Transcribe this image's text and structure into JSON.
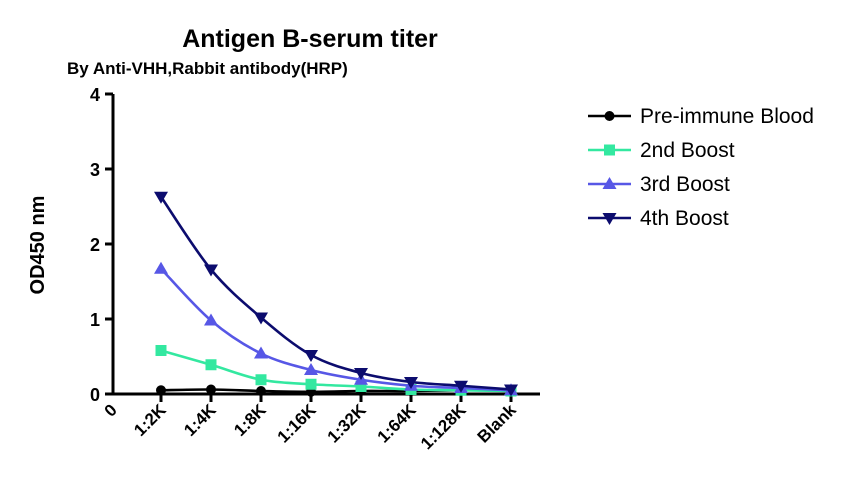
{
  "chart_data": {
    "type": "line",
    "title": "Antigen B-serum titer",
    "subtitle": "By Anti-VHH,Rabbit antibody(HRP)",
    "xlabel": "",
    "ylabel": "OD450 nm",
    "x_origin_label": "0",
    "categories": [
      "1:2K",
      "1:4K",
      "1:8K",
      "1:16K",
      "1:32K",
      "1:64K",
      "1:128K",
      "Blank"
    ],
    "yticks": [
      "0",
      "1",
      "2",
      "3",
      "4"
    ],
    "ylim": [
      0,
      4
    ],
    "grid": false,
    "legend_position": "top-right",
    "series": [
      {
        "name": "Pre-immune Blood",
        "marker": "circle",
        "color": "#000000",
        "values": [
          0.05,
          0.06,
          0.04,
          0.03,
          0.04,
          0.04,
          0.05,
          0.05
        ]
      },
      {
        "name": "2nd Boost",
        "marker": "square",
        "color": "#33e8a0",
        "values": [
          0.58,
          0.39,
          0.19,
          0.13,
          0.1,
          0.06,
          0.05,
          0.04
        ]
      },
      {
        "name": "3rd Boost",
        "marker": "triangle-up",
        "color": "#5757e6",
        "values": [
          1.67,
          0.98,
          0.54,
          0.32,
          0.19,
          0.11,
          0.08,
          0.05
        ]
      },
      {
        "name": "4th Boost",
        "marker": "triangle-down",
        "color": "#0c0c6e",
        "values": [
          2.63,
          1.66,
          1.02,
          0.52,
          0.28,
          0.16,
          0.11,
          0.06
        ]
      }
    ]
  }
}
